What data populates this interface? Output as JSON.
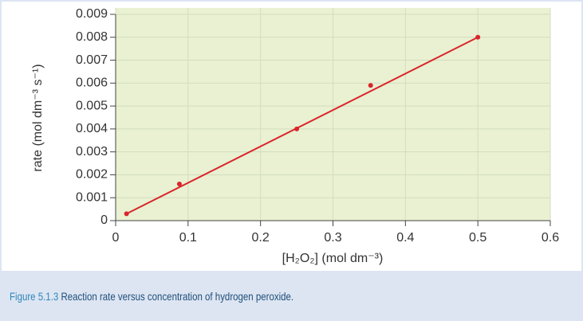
{
  "chart_data": {
    "type": "scatter",
    "y_label": "rate (mol dm⁻³ s⁻¹)",
    "x_label": "[H₂O₂] (mol dm⁻³)",
    "x": [
      0.015,
      0.088,
      0.25,
      0.352,
      0.5
    ],
    "values": [
      0.0003,
      0.0016,
      0.004,
      0.0059,
      0.008
    ],
    "color": "#d9262b",
    "fit_line": {
      "x": [
        0.015,
        0.5
      ],
      "values": [
        0.0003,
        0.008
      ],
      "color": "#d9262b"
    },
    "xlim": [
      0,
      0.6
    ],
    "xticks": [
      0,
      0.1,
      0.2,
      0.3,
      0.4,
      0.5,
      0.6
    ],
    "ylim": [
      0,
      0.009
    ],
    "yticks": [
      0,
      0.001,
      0.002,
      0.003,
      0.004,
      0.005,
      0.006,
      0.007,
      0.008,
      0.009
    ],
    "grid": true,
    "caption_label": "Figure 5.1.3",
    "caption": "Reaction rate versus concentration of hydrogen peroxide."
  }
}
